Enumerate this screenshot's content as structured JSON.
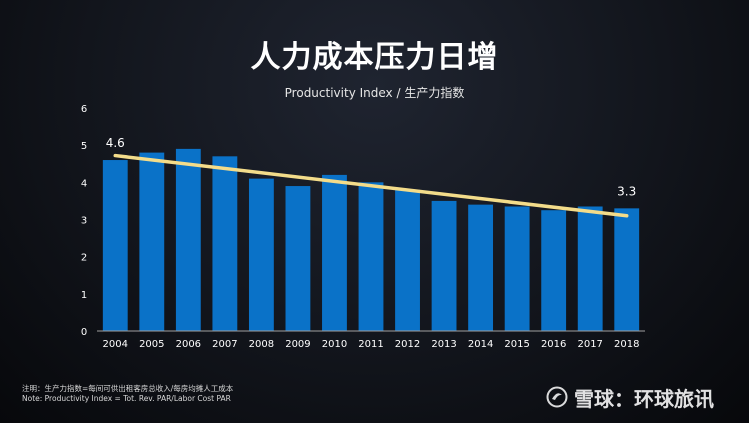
{
  "slide": {
    "title": "人力成本压力日增",
    "footnote_line1": "注明：生产力指数=每间可供出租客房总收入/每房均摊人工成本",
    "footnote_line2": "Note: Productivity Index = Tot. Rev. PAR/Labor Cost PAR",
    "watermark": "雪球：环球旅讯"
  },
  "colors": {
    "bar": "#0a72c8",
    "trend": "#f3dc8a",
    "axis": "#a0a0a0",
    "text": "#ffffff"
  },
  "chart_data": {
    "type": "bar",
    "title": "Productivity Index / 生产力指数",
    "categories": [
      "2004",
      "2005",
      "2006",
      "2007",
      "2008",
      "2009",
      "2010",
      "2011",
      "2012",
      "2013",
      "2014",
      "2015",
      "2016",
      "2017",
      "2018"
    ],
    "series": [
      {
        "values": [
          4.6,
          4.8,
          4.9,
          4.7,
          4.1,
          3.9,
          4.2,
          4.0,
          3.8,
          3.5,
          3.4,
          3.35,
          3.25,
          3.35,
          3.3
        ]
      }
    ],
    "trendline": {
      "start_value": 4.72,
      "end_value": 3.1
    },
    "annotations": [
      {
        "category": "2004",
        "value": 4.6,
        "text": "4.6"
      },
      {
        "category": "2018",
        "value": 3.3,
        "text": "3.3"
      }
    ],
    "yticks": [
      "0",
      "1",
      "2",
      "3",
      "4",
      "5",
      "6"
    ],
    "ylim": [
      0,
      6
    ],
    "xlabel": "",
    "ylabel": "",
    "grid": false,
    "legend": "none"
  }
}
